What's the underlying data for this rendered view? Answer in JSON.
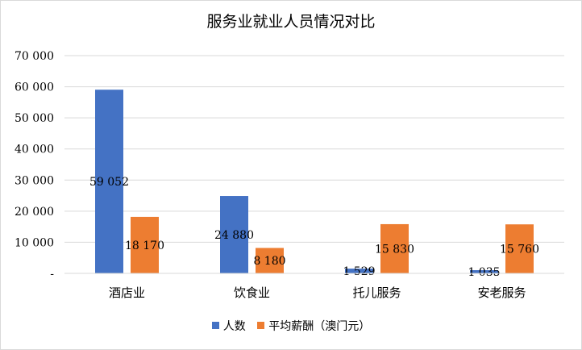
{
  "chart_data": {
    "type": "bar",
    "title": "服务业就业人员情况对比",
    "categories": [
      "酒店业",
      "饮食业",
      "托儿服务",
      "安老服务"
    ],
    "series": [
      {
        "name": "人数",
        "color": "#4472c4",
        "values": [
          59052,
          24880,
          1529,
          1035
        ],
        "labels": [
          "59 052",
          "24 880",
          "1 529",
          "1 035"
        ]
      },
      {
        "name": "平均薪酬（澳门元）",
        "color": "#ed7d31",
        "values": [
          18170,
          8180,
          15830,
          15760
        ],
        "labels": [
          "18 170",
          "8 180",
          "15 830",
          "15 760"
        ]
      }
    ],
    "ylim": [
      0,
      70000
    ],
    "yticks": [
      0,
      10000,
      20000,
      30000,
      40000,
      50000,
      60000,
      70000
    ],
    "ytick_labels": [
      "-",
      "10 000",
      "20 000",
      "30 000",
      "40 000",
      "50 000",
      "60 000",
      "70 000"
    ],
    "grid": true,
    "legend_position": "bottom",
    "xlabel": "",
    "ylabel": ""
  }
}
